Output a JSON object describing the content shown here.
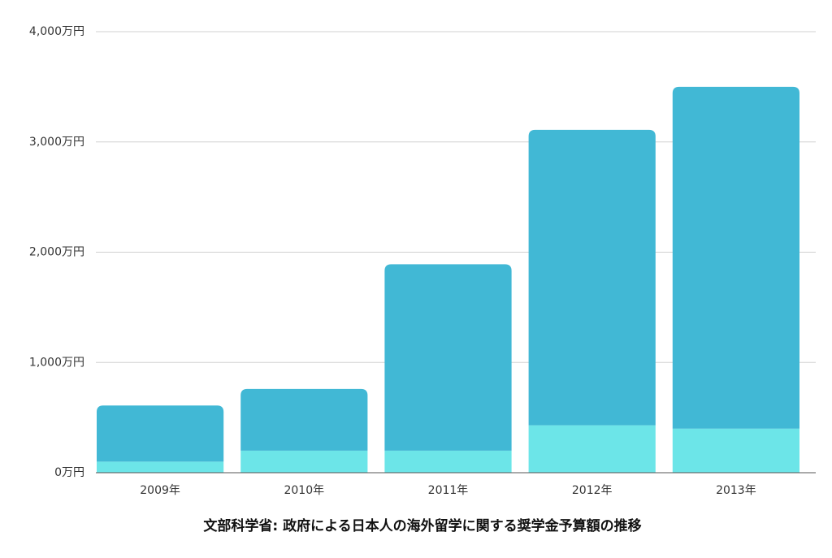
{
  "chart_data": {
    "type": "stacked-bar",
    "title": "文部科学省: 政府による日本人の海外留学に関する奨学金予算額の推移",
    "categories": [
      "2009年",
      "2010年",
      "2011年",
      "2012年",
      "2013年"
    ],
    "series": [
      {
        "color": "#6ce5e8",
        "values": [
          100,
          200,
          200,
          430,
          400
        ]
      },
      {
        "color": "#41b8d5",
        "values": [
          510,
          560,
          1690,
          2680,
          3100
        ]
      }
    ],
    "ylim": [
      0,
      4000
    ],
    "yticks": [
      {
        "value": 0,
        "label": "0万円"
      },
      {
        "value": 1000,
        "label": "1,000万円"
      },
      {
        "value": 2000,
        "label": "2,000万円"
      },
      {
        "value": 3000,
        "label": "3,000万円"
      },
      {
        "value": 4000,
        "label": "4,000万円"
      }
    ],
    "grid": true
  }
}
